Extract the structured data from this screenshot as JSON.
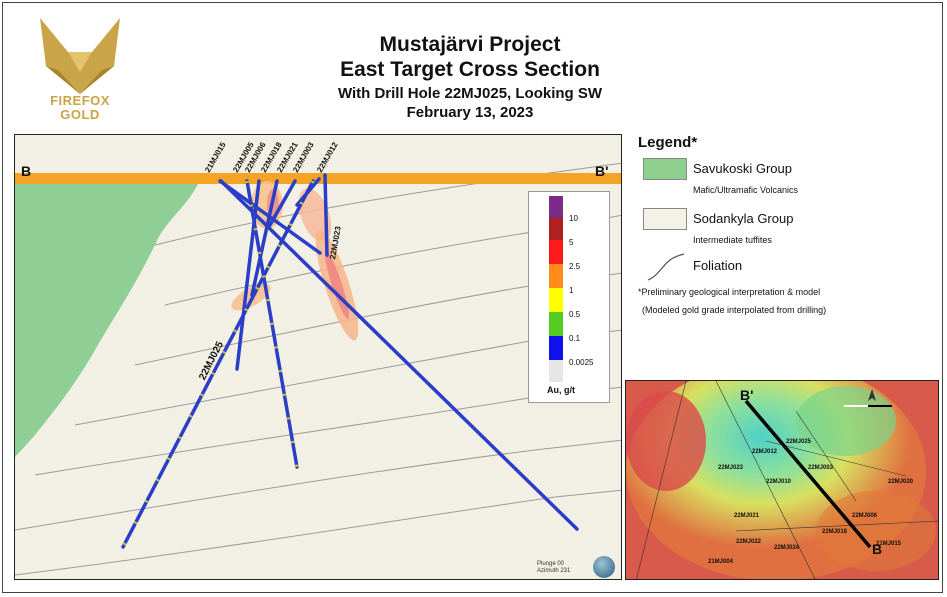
{
  "logo": {
    "line1": "FIREFOX",
    "line2": "GOLD"
  },
  "title": {
    "line1": "Mustajärvi Project",
    "line2": "East Target Cross Section",
    "line3": "With Drill Hole 22MJ025, Looking SW",
    "line4": "February 13, 2023"
  },
  "section": {
    "left_label": "B",
    "right_label": "B'",
    "holes": [
      "21MJ015",
      "22MJ005",
      "22MJ006",
      "22MJ018",
      "22MJ021",
      "22MJ003",
      "22MJ012",
      "22MJ023",
      "22MJ025"
    ],
    "plunge": "Plunge 00",
    "azimuth": "Azimuth 231"
  },
  "colorbar": {
    "title": "Au, g/t",
    "labels": [
      "10",
      "5",
      "2.5",
      "1",
      "0.5",
      "0.1",
      "0.0025"
    ],
    "colors": [
      "#7b2a8a",
      "#b02020",
      "#ff1a1a",
      "#ff8c1a",
      "#ffff00",
      "#55cc22",
      "#1111ee",
      "#e6e6e6"
    ]
  },
  "legend": {
    "title": "Legend*",
    "items": [
      {
        "name": "Savukoski Group",
        "desc": "Mafic/Ultramafic Volcanics",
        "color": "#8fd08f"
      },
      {
        "name": "Sodankyla Group",
        "desc": "Intermediate tuffites",
        "color": "#f4f2e6"
      }
    ],
    "foliation": "Foliation",
    "note1": "*Preliminary geological interpretation & model",
    "note2": "(Modeled gold grade interpolated from drilling)"
  },
  "inset": {
    "b_prime": "B'",
    "b": "B",
    "holes": [
      "22MJ025",
      "22MJ012",
      "22MJ023",
      "22MJ003",
      "22MJ010",
      "22MJ020",
      "22MJ021",
      "22MJ006",
      "22MJ018",
      "22MJ022",
      "22MJ024",
      "21MJ004",
      "21MJ015"
    ]
  }
}
